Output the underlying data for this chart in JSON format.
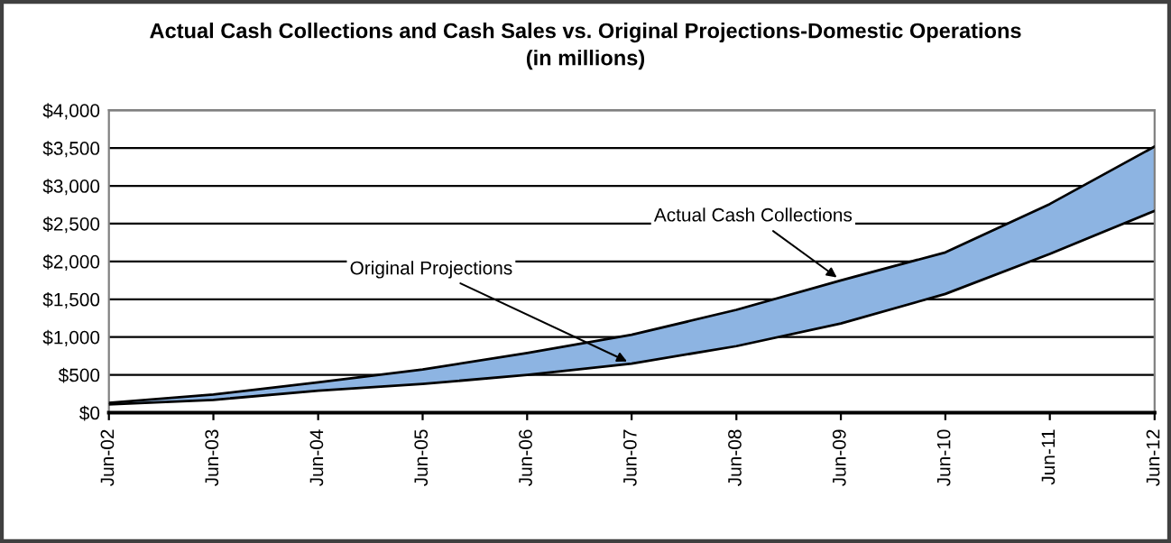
{
  "chart_data": {
    "type": "area",
    "title": "Actual Cash Collections and Cash Sales vs. Original Projections-Domestic Operations",
    "subtitle": "(in millions)",
    "x": [
      "2002-06",
      "2003-06",
      "2004-06",
      "2005-06",
      "2006-06",
      "2007-06",
      "2008-06",
      "2009-06",
      "2010-06",
      "2011-06",
      "2012-06"
    ],
    "series": [
      {
        "type": "line",
        "color": "#000000",
        "values": [
          110,
          170,
          290,
          380,
          500,
          650,
          880,
          1180,
          1570,
          2100,
          2670
        ]
      },
      {
        "color": "#8db4e2",
        "values": [
          130,
          240,
          400,
          570,
          790,
          1030,
          1360,
          1750,
          2120,
          2760,
          3520
        ]
      }
    ],
    "annotations": [
      {
        "text": "Actual Cash Collections",
        "x": "2009-06",
        "y": 1750
      },
      {
        "text": "Original Projections",
        "x": "2007-06",
        "y": 650
      }
    ],
    "xlim": [
      "2002-06",
      "2012-06"
    ],
    "xticks": [
      {
        "value": "2002-06",
        "label": "Jun-02"
      },
      {
        "value": "2003-06",
        "label": "Jun-03"
      },
      {
        "value": "2004-06",
        "label": "Jun-04"
      },
      {
        "value": "2005-06",
        "label": "Jun-05"
      },
      {
        "value": "2006-06",
        "label": "Jun-06"
      },
      {
        "value": "2007-06",
        "label": "Jun-07"
      },
      {
        "value": "2008-06",
        "label": "Jun-08"
      },
      {
        "value": "2009-06",
        "label": "Jun-09"
      },
      {
        "value": "2010-06",
        "label": "Jun-10"
      },
      {
        "value": "2011-06",
        "label": "Jun-11"
      },
      {
        "value": "2012-06",
        "label": "Jun-12"
      }
    ],
    "ylim": [
      0,
      4000
    ],
    "yticks": [
      {
        "value": 0,
        "label": "$0"
      },
      {
        "value": 500,
        "label": "$500"
      },
      {
        "value": 1000,
        "label": "$1,000"
      },
      {
        "value": 1500,
        "label": "$1,500"
      },
      {
        "value": 2000,
        "label": "$2,000"
      },
      {
        "value": 2500,
        "label": "$2,500"
      },
      {
        "value": 3000,
        "label": "$3,000"
      },
      {
        "value": 3500,
        "label": "$3,500"
      },
      {
        "value": 4000,
        "label": "$4,000"
      }
    ],
    "grid": "y",
    "legend": false
  }
}
